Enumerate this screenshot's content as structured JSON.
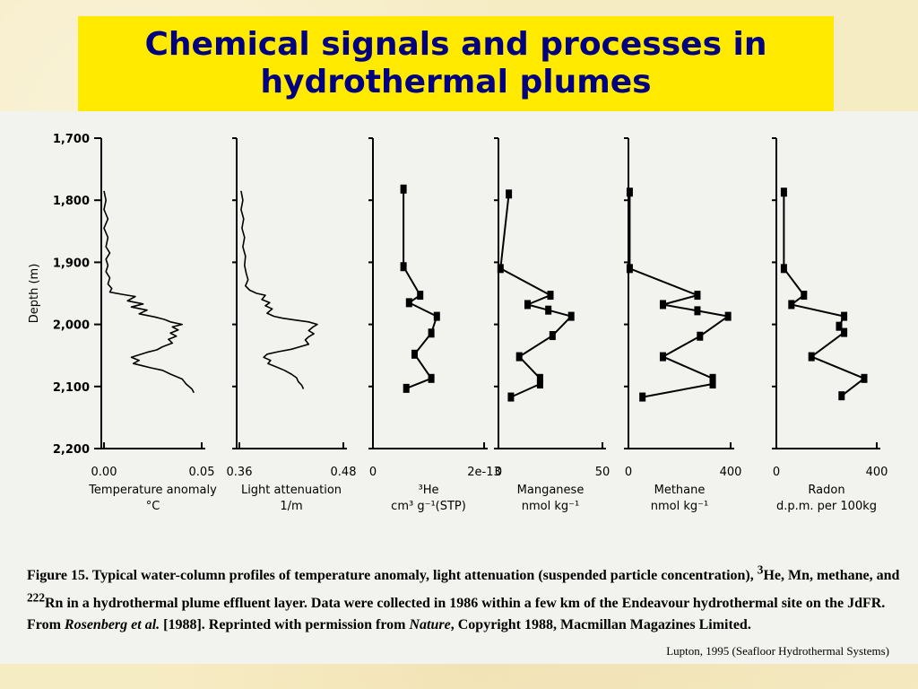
{
  "title": "Chemical signals and processes in\nhydrothermal plumes",
  "colors": {
    "title_bg": "#ffea00",
    "title_text": "#000080",
    "slide_bg": "#f6ecc4",
    "figure_bg": "#f2f3ee"
  },
  "caption": {
    "p1": "Figure 15.  Typical water-column profiles of temperature anomaly, light attenuation (suspended particle concentration), ",
    "he_sup": "3",
    "p2": "He, Mn, methane, and ",
    "rn_sup": "222",
    "p3": "Rn in a hydrothermal plume effluent layer.  Data were collected in 1986 within a few km of the Endeavour hydrothermal site on the JdFR.  From ",
    "ref_italic": "Rosenberg et al.",
    "p4": " [1988].  Reprinted with permission from ",
    "journal_italic": "Nature",
    "p5": ", Copyright 1988, Macmillan Magazines Limited."
  },
  "credit": "Lupton, 1995 (Seafloor Hydrothermal Systems)",
  "chart_data": {
    "type": "line",
    "y_axis": {
      "label": "Depth (m)",
      "range": [
        1700,
        2200
      ],
      "inverted": true,
      "ticks": [
        "1,700",
        "1,800",
        "1,900",
        "2,000",
        "2,100",
        "2,200"
      ],
      "tick_values": [
        1700,
        1800,
        1900,
        2000,
        2100,
        2200
      ]
    },
    "panels": [
      {
        "name": "temperature",
        "xlabel_lines": [
          "Temperature anomaly",
          "°C"
        ],
        "tick_labels": [
          "0.00",
          "0.05"
        ],
        "xlim": [
          0,
          0.05
        ],
        "markers": false,
        "points": [
          [
            0.0,
            1785
          ],
          [
            0.001,
            1800
          ],
          [
            0.0,
            1815
          ],
          [
            0.002,
            1830
          ],
          [
            0.0,
            1845
          ],
          [
            0.002,
            1860
          ],
          [
            0.001,
            1875
          ],
          [
            0.003,
            1885
          ],
          [
            0.001,
            1895
          ],
          [
            0.002,
            1905
          ],
          [
            0.001,
            1915
          ],
          [
            0.003,
            1925
          ],
          [
            0.002,
            1935
          ],
          [
            0.004,
            1942
          ],
          [
            0.003,
            1948
          ],
          [
            0.01,
            1952
          ],
          [
            0.016,
            1955
          ],
          [
            0.012,
            1962
          ],
          [
            0.02,
            1967
          ],
          [
            0.014,
            1972
          ],
          [
            0.022,
            1977
          ],
          [
            0.018,
            1983
          ],
          [
            0.026,
            1988
          ],
          [
            0.031,
            1992
          ],
          [
            0.034,
            1996
          ],
          [
            0.04,
            2000
          ],
          [
            0.035,
            2004
          ],
          [
            0.038,
            2009
          ],
          [
            0.034,
            2014
          ],
          [
            0.037,
            2019
          ],
          [
            0.033,
            2024
          ],
          [
            0.035,
            2030
          ],
          [
            0.03,
            2036
          ],
          [
            0.027,
            2041
          ],
          [
            0.022,
            2045
          ],
          [
            0.018,
            2049
          ],
          [
            0.014,
            2053
          ],
          [
            0.018,
            2058
          ],
          [
            0.015,
            2063
          ],
          [
            0.019,
            2066
          ],
          [
            0.024,
            2070
          ],
          [
            0.03,
            2074
          ],
          [
            0.034,
            2080
          ],
          [
            0.04,
            2088
          ],
          [
            0.042,
            2096
          ],
          [
            0.045,
            2104
          ],
          [
            0.046,
            2110
          ]
        ]
      },
      {
        "name": "light_attenuation",
        "xlabel_lines": [
          "Light attenuation",
          "1/m"
        ],
        "tick_labels": [
          "0.36",
          "0.48"
        ],
        "xlim": [
          0.36,
          0.48
        ],
        "markers": false,
        "points": [
          [
            0.362,
            1785
          ],
          [
            0.364,
            1800
          ],
          [
            0.362,
            1815
          ],
          [
            0.365,
            1830
          ],
          [
            0.363,
            1845
          ],
          [
            0.366,
            1860
          ],
          [
            0.364,
            1875
          ],
          [
            0.367,
            1890
          ],
          [
            0.366,
            1905
          ],
          [
            0.368,
            1918
          ],
          [
            0.37,
            1928
          ],
          [
            0.367,
            1938
          ],
          [
            0.372,
            1945
          ],
          [
            0.38,
            1950
          ],
          [
            0.39,
            1953
          ],
          [
            0.386,
            1960
          ],
          [
            0.395,
            1965
          ],
          [
            0.39,
            1970
          ],
          [
            0.398,
            1975
          ],
          [
            0.392,
            1982
          ],
          [
            0.4,
            1987
          ],
          [
            0.41,
            1990
          ],
          [
            0.425,
            1993
          ],
          [
            0.44,
            1996
          ],
          [
            0.45,
            2000
          ],
          [
            0.445,
            2004
          ],
          [
            0.44,
            2010
          ],
          [
            0.446,
            2015
          ],
          [
            0.44,
            2020
          ],
          [
            0.436,
            2025
          ],
          [
            0.44,
            2032
          ],
          [
            0.43,
            2036
          ],
          [
            0.42,
            2040
          ],
          [
            0.405,
            2044
          ],
          [
            0.392,
            2048
          ],
          [
            0.388,
            2053
          ],
          [
            0.396,
            2058
          ],
          [
            0.393,
            2063
          ],
          [
            0.402,
            2068
          ],
          [
            0.412,
            2074
          ],
          [
            0.42,
            2080
          ],
          [
            0.426,
            2086
          ],
          [
            0.428,
            2092
          ],
          [
            0.432,
            2098
          ],
          [
            0.434,
            2104
          ]
        ]
      },
      {
        "name": "helium3",
        "xlabel_lines": [
          "³He",
          "cm³ g⁻¹(STP)"
        ],
        "tick_labels": [
          "0",
          "2e-13"
        ],
        "xlim": [
          0,
          2e-13
        ],
        "markers": true,
        "points": [
          [
            5.5e-14,
            1782
          ],
          [
            5.5e-14,
            1907
          ],
          [
            8.5e-14,
            1953
          ],
          [
            6.5e-14,
            1965
          ],
          [
            1.15e-13,
            1987
          ],
          [
            1.05e-13,
            2014
          ],
          [
            7.5e-14,
            2048
          ],
          [
            1.05e-13,
            2087
          ],
          [
            6e-14,
            2103
          ]
        ]
      },
      {
        "name": "manganese",
        "xlabel_lines": [
          "Manganese",
          "nmol kg⁻¹"
        ],
        "tick_labels": [
          "0",
          "50"
        ],
        "xlim": [
          0,
          50
        ],
        "markers": true,
        "points": [
          [
            5,
            1790
          ],
          [
            1,
            1910
          ],
          [
            25,
            1953
          ],
          [
            14,
            1968
          ],
          [
            24,
            1977
          ],
          [
            35,
            1987
          ],
          [
            26,
            2018
          ],
          [
            10,
            2052
          ],
          [
            20,
            2087
          ],
          [
            20,
            2096
          ],
          [
            6,
            2117
          ]
        ]
      },
      {
        "name": "methane",
        "xlabel_lines": [
          "Methane",
          "nmol kg⁻¹"
        ],
        "tick_labels": [
          "0",
          "400"
        ],
        "xlim": [
          0,
          400
        ],
        "markers": true,
        "points": [
          [
            5,
            1787
          ],
          [
            5,
            1910
          ],
          [
            270,
            1953
          ],
          [
            135,
            1968
          ],
          [
            270,
            1978
          ],
          [
            390,
            1987
          ],
          [
            280,
            2019
          ],
          [
            135,
            2052
          ],
          [
            330,
            2087
          ],
          [
            330,
            2096
          ],
          [
            55,
            2117
          ]
        ]
      },
      {
        "name": "radon",
        "xlabel_lines": [
          "Radon",
          "d.p.m. per 100kg"
        ],
        "tick_labels": [
          "0",
          "400"
        ],
        "xlim": [
          0,
          400
        ],
        "markers": true,
        "points": [
          [
            30,
            1787
          ],
          [
            30,
            1910
          ],
          [
            110,
            1953
          ],
          [
            60,
            1968
          ],
          [
            270,
            1987
          ],
          [
            250,
            2003
          ],
          [
            270,
            2013
          ],
          [
            140,
            2052
          ],
          [
            350,
            2087
          ],
          [
            260,
            2115
          ]
        ]
      }
    ]
  }
}
